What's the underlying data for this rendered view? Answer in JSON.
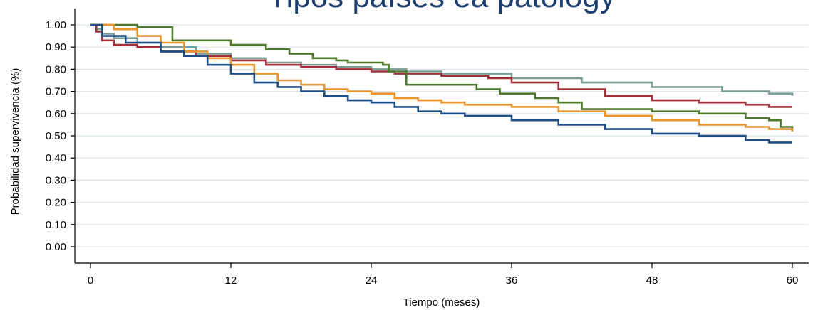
{
  "chart_data": {
    "type": "line",
    "title_visible_fragment": "... pa... gy",
    "xlabel": "Tiempo (meses)",
    "ylabel": "Probabilidad supervivencia (%)",
    "xlim": [
      0,
      60
    ],
    "ylim": [
      0,
      1
    ],
    "x_ticks": [
      "0",
      "12",
      "24",
      "36",
      "48",
      "60"
    ],
    "y_ticks": [
      "0.00",
      "0.10",
      "0.20",
      "0.30",
      "0.40",
      "0.50",
      "0.60",
      "0.70",
      "0.80",
      "0.90",
      "1.00"
    ],
    "grid": "horizontal",
    "step": true,
    "series": [
      {
        "color": "#7a9e95",
        "points": [
          [
            0,
            1.0
          ],
          [
            0.5,
            0.98
          ],
          [
            1,
            0.96
          ],
          [
            2,
            0.94
          ],
          [
            4,
            0.92
          ],
          [
            6,
            0.9
          ],
          [
            9,
            0.87
          ],
          [
            12,
            0.85
          ],
          [
            15,
            0.83
          ],
          [
            18,
            0.82
          ],
          [
            21,
            0.81
          ],
          [
            24,
            0.8
          ],
          [
            27,
            0.79
          ],
          [
            30,
            0.78
          ],
          [
            36,
            0.76
          ],
          [
            42,
            0.74
          ],
          [
            48,
            0.72
          ],
          [
            54,
            0.7
          ],
          [
            58,
            0.69
          ],
          [
            60,
            0.68
          ]
        ]
      },
      {
        "color": "#a1303a",
        "points": [
          [
            0,
            1.0
          ],
          [
            0.5,
            0.97
          ],
          [
            1,
            0.93
          ],
          [
            2,
            0.91
          ],
          [
            4,
            0.9
          ],
          [
            6,
            0.88
          ],
          [
            9,
            0.86
          ],
          [
            12,
            0.84
          ],
          [
            15,
            0.82
          ],
          [
            18,
            0.81
          ],
          [
            21,
            0.8
          ],
          [
            24,
            0.79
          ],
          [
            26,
            0.78
          ],
          [
            30,
            0.77
          ],
          [
            34,
            0.76
          ],
          [
            36,
            0.74
          ],
          [
            40,
            0.71
          ],
          [
            44,
            0.68
          ],
          [
            48,
            0.66
          ],
          [
            52,
            0.65
          ],
          [
            56,
            0.64
          ],
          [
            58,
            0.63
          ],
          [
            60,
            0.63
          ]
        ]
      },
      {
        "color": "#4e7a2b",
        "points": [
          [
            0,
            1.0
          ],
          [
            2,
            1.0
          ],
          [
            4,
            0.99
          ],
          [
            6.5,
            0.99
          ],
          [
            7,
            0.93
          ],
          [
            10,
            0.93
          ],
          [
            12,
            0.91
          ],
          [
            15,
            0.89
          ],
          [
            17,
            0.87
          ],
          [
            19,
            0.85
          ],
          [
            21,
            0.84
          ],
          [
            22,
            0.83
          ],
          [
            25,
            0.82
          ],
          [
            25.5,
            0.79
          ],
          [
            27,
            0.73
          ],
          [
            30,
            0.73
          ],
          [
            33,
            0.71
          ],
          [
            35,
            0.69
          ],
          [
            36,
            0.69
          ],
          [
            38,
            0.67
          ],
          [
            40,
            0.65
          ],
          [
            42,
            0.62
          ],
          [
            46,
            0.62
          ],
          [
            48,
            0.61
          ],
          [
            50,
            0.61
          ],
          [
            52,
            0.6
          ],
          [
            55,
            0.6
          ],
          [
            56,
            0.58
          ],
          [
            58,
            0.57
          ],
          [
            59,
            0.54
          ],
          [
            60,
            0.52
          ]
        ]
      },
      {
        "color": "#e8952e",
        "points": [
          [
            0,
            1.0
          ],
          [
            2,
            0.98
          ],
          [
            4,
            0.95
          ],
          [
            6,
            0.92
          ],
          [
            8,
            0.88
          ],
          [
            10,
            0.85
          ],
          [
            12,
            0.82
          ],
          [
            14,
            0.78
          ],
          [
            16,
            0.75
          ],
          [
            18,
            0.73
          ],
          [
            20,
            0.71
          ],
          [
            22,
            0.7
          ],
          [
            24,
            0.69
          ],
          [
            26,
            0.67
          ],
          [
            28,
            0.66
          ],
          [
            30,
            0.65
          ],
          [
            32,
            0.64
          ],
          [
            36,
            0.63
          ],
          [
            40,
            0.61
          ],
          [
            44,
            0.59
          ],
          [
            48,
            0.57
          ],
          [
            52,
            0.55
          ],
          [
            56,
            0.54
          ],
          [
            58,
            0.53
          ],
          [
            60,
            0.52
          ]
        ]
      },
      {
        "color": "#1f4e87",
        "points": [
          [
            0,
            1.0
          ],
          [
            1,
            0.95
          ],
          [
            3,
            0.92
          ],
          [
            6,
            0.88
          ],
          [
            8,
            0.86
          ],
          [
            10,
            0.82
          ],
          [
            12,
            0.78
          ],
          [
            14,
            0.74
          ],
          [
            16,
            0.72
          ],
          [
            18,
            0.7
          ],
          [
            20,
            0.68
          ],
          [
            22,
            0.66
          ],
          [
            24,
            0.65
          ],
          [
            26,
            0.63
          ],
          [
            28,
            0.61
          ],
          [
            30,
            0.6
          ],
          [
            32,
            0.59
          ],
          [
            36,
            0.57
          ],
          [
            40,
            0.55
          ],
          [
            44,
            0.53
          ],
          [
            48,
            0.51
          ],
          [
            52,
            0.5
          ],
          [
            56,
            0.48
          ],
          [
            58,
            0.47
          ],
          [
            60,
            0.47
          ]
        ]
      }
    ]
  }
}
